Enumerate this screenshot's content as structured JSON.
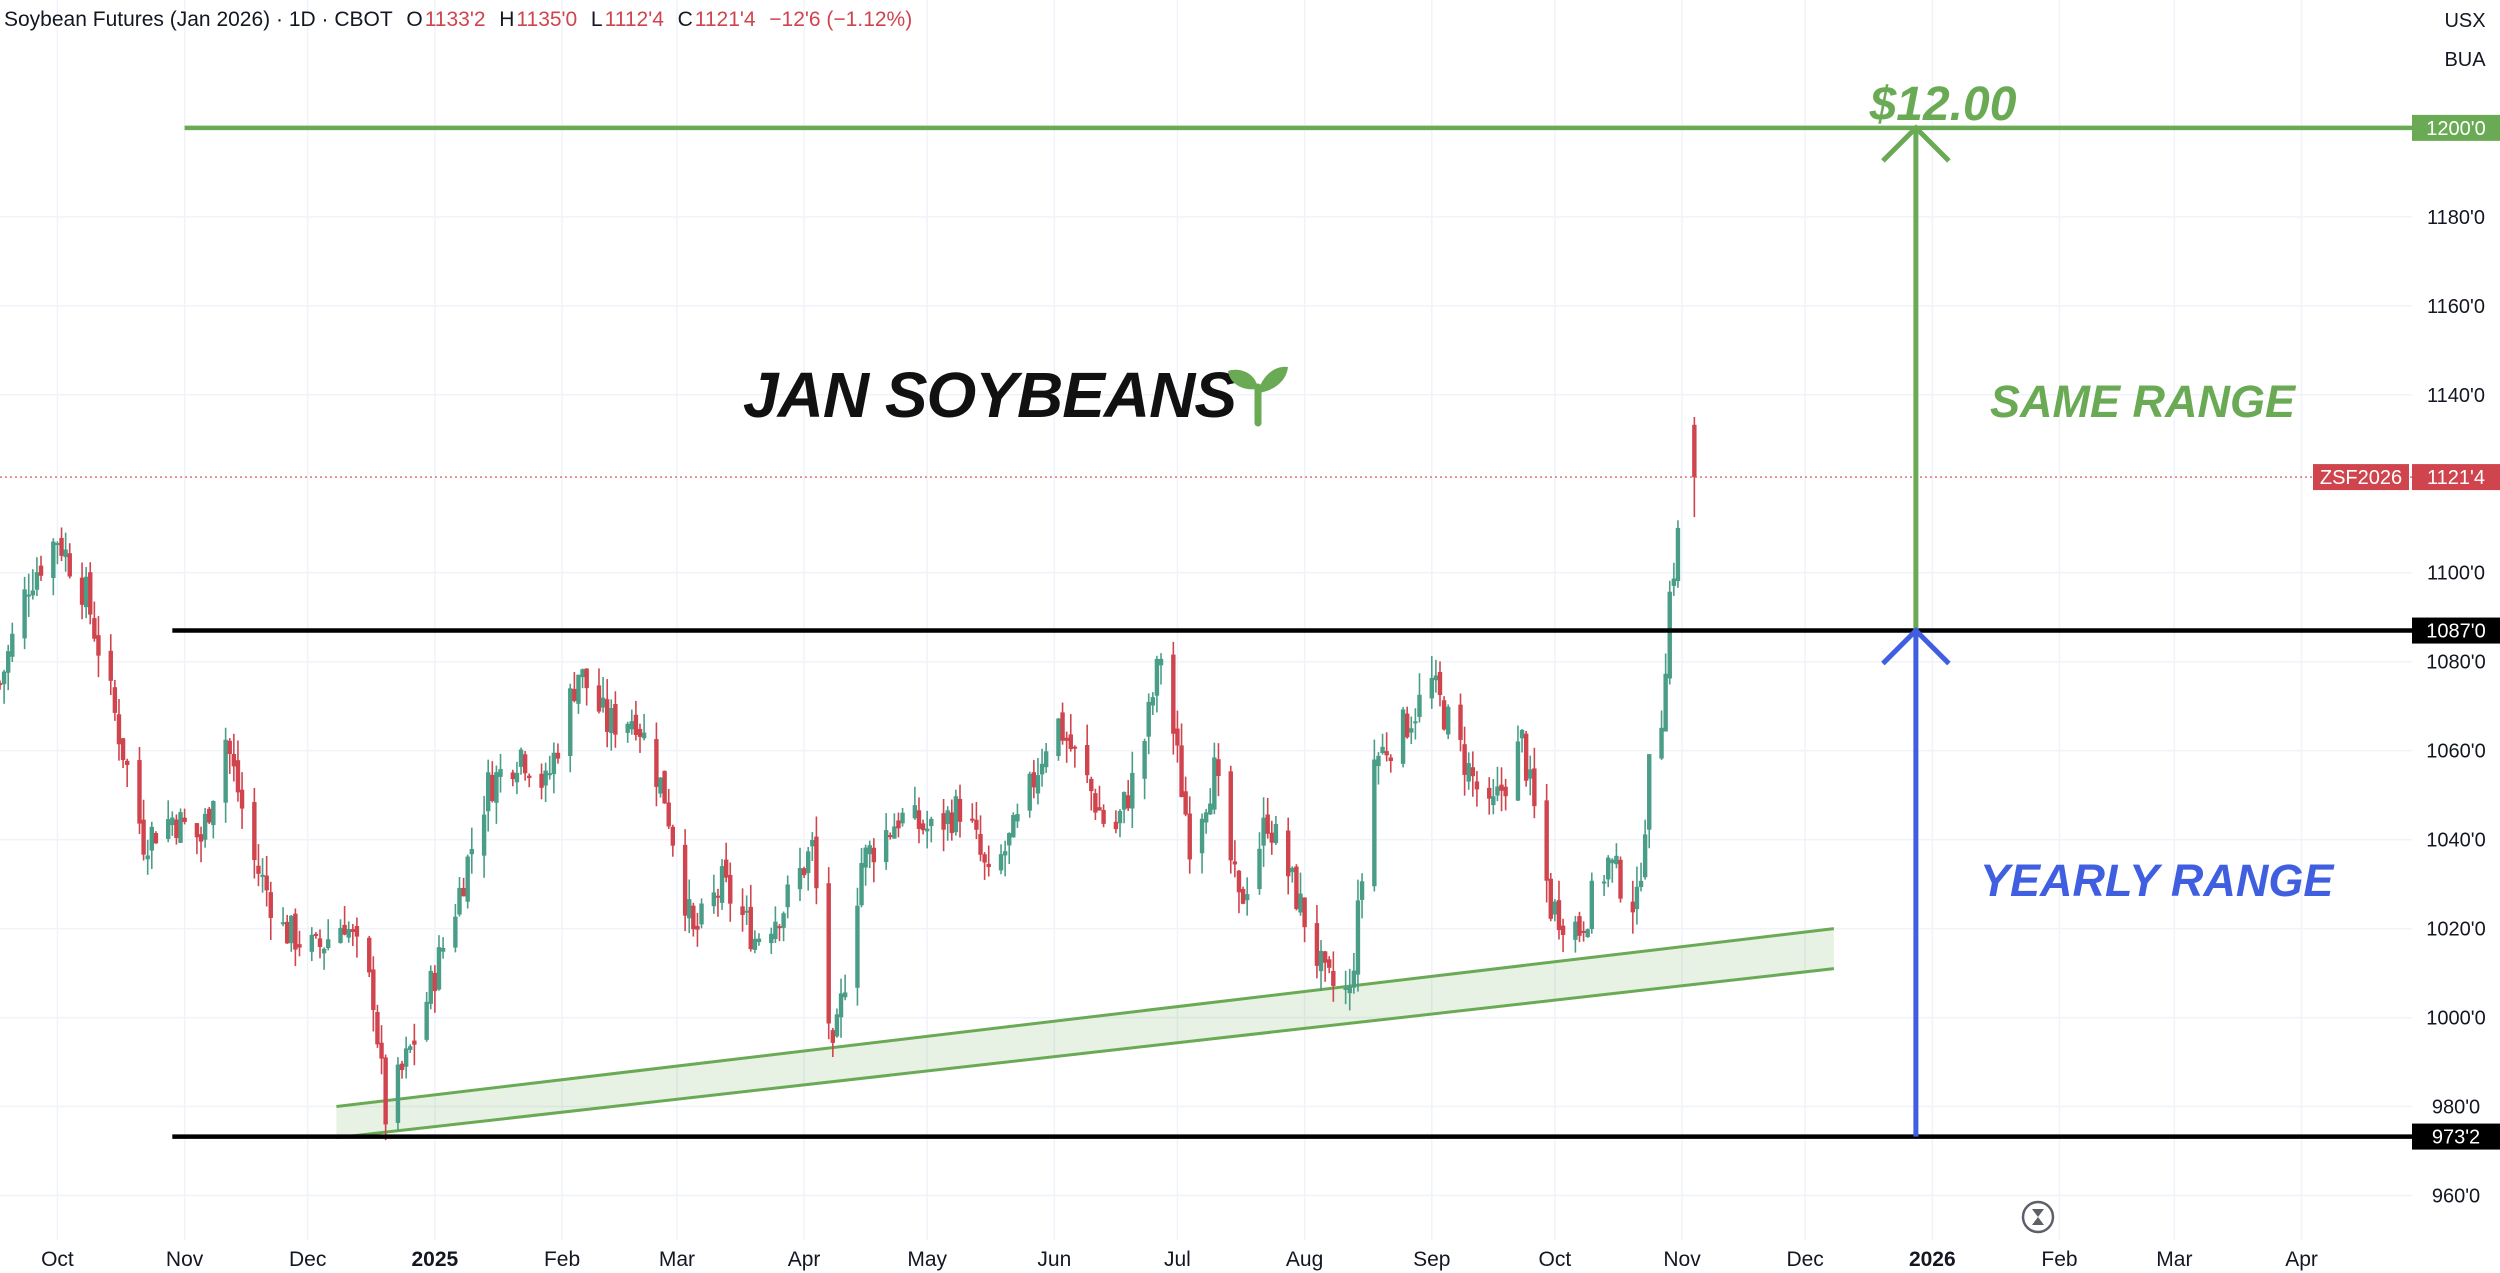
{
  "header": {
    "title": "Soybean Futures (Jan 2026) · 1D · CBOT",
    "open_label": "O",
    "open": "1133'2",
    "high_label": "H",
    "high": "1135'0",
    "low_label": "L",
    "low": "1112'4",
    "close_label": "C",
    "close": "1121'4",
    "change": "−12'6 (−1.12%)"
  },
  "currency_buttons": [
    "USX",
    "BUA"
  ],
  "colors": {
    "up": "#4a9d87",
    "down": "#d0444e",
    "green": "#6aaa55",
    "blue": "#3f5fe0",
    "black": "#000000",
    "axis_text": "#131722"
  },
  "chart_data": {
    "type": "candlestick",
    "title": "JAN SOYBEANS",
    "symbol": "ZSF2026",
    "last_price": 1121.5,
    "last_price_label": "1121'4",
    "ylim": [
      950,
      1222
    ],
    "y_ticks": [
      960,
      980,
      1000,
      1020,
      1040,
      1060,
      1080,
      1100,
      1140,
      1160,
      1180
    ],
    "y_tick_labels": [
      "960'0",
      "980'0",
      "1000'0",
      "1020'0",
      "1040'0",
      "1060'0",
      "1080'0",
      "1100'0",
      "1140'0",
      "1160'0",
      "1180'0"
    ],
    "xlim": [
      "2024-09-17",
      "2026-04-25"
    ],
    "x_ticks": [
      {
        "date": "2024-10-01",
        "label": "Oct",
        "bold": false
      },
      {
        "date": "2024-11-01",
        "label": "Nov",
        "bold": false
      },
      {
        "date": "2024-12-01",
        "label": "Dec",
        "bold": false
      },
      {
        "date": "2025-01-01",
        "label": "2025",
        "bold": true
      },
      {
        "date": "2025-02-01",
        "label": "Feb",
        "bold": false
      },
      {
        "date": "2025-03-01",
        "label": "Mar",
        "bold": false
      },
      {
        "date": "2025-04-01",
        "label": "Apr",
        "bold": false
      },
      {
        "date": "2025-05-01",
        "label": "May",
        "bold": false
      },
      {
        "date": "2025-06-01",
        "label": "Jun",
        "bold": false
      },
      {
        "date": "2025-07-01",
        "label": "Jul",
        "bold": false
      },
      {
        "date": "2025-08-01",
        "label": "Aug",
        "bold": false
      },
      {
        "date": "2025-09-01",
        "label": "Sep",
        "bold": false
      },
      {
        "date": "2025-10-01",
        "label": "Oct",
        "bold": false
      },
      {
        "date": "2025-11-01",
        "label": "Nov",
        "bold": false
      },
      {
        "date": "2025-12-01",
        "label": "Dec",
        "bold": false
      },
      {
        "date": "2026-01-01",
        "label": "2026",
        "bold": true
      },
      {
        "date": "2026-02-01",
        "label": "Feb",
        "bold": false
      },
      {
        "date": "2026-03-01",
        "label": "Mar",
        "bold": false
      },
      {
        "date": "2026-04-01",
        "label": "Apr",
        "bold": false
      }
    ],
    "price_path": [
      [
        "2024-09-17",
        1075
      ],
      [
        "2024-09-24",
        1098
      ],
      [
        "2024-10-01",
        1108
      ],
      [
        "2024-10-08",
        1095
      ],
      [
        "2024-10-15",
        1068
      ],
      [
        "2024-10-22",
        1040
      ],
      [
        "2024-10-29",
        1045
      ],
      [
        "2024-11-05",
        1040
      ],
      [
        "2024-11-11",
        1063
      ],
      [
        "2024-11-18",
        1035
      ],
      [
        "2024-11-25",
        1020
      ],
      [
        "2024-12-03",
        1015
      ],
      [
        "2024-12-10",
        1022
      ],
      [
        "2024-12-17",
        1005
      ],
      [
        "2024-12-20",
        978
      ],
      [
        "2024-12-27",
        995
      ],
      [
        "2025-01-06",
        1025
      ],
      [
        "2025-01-14",
        1052
      ],
      [
        "2025-01-22",
        1060
      ],
      [
        "2025-01-28",
        1052
      ],
      [
        "2025-02-05",
        1078
      ],
      [
        "2025-02-12",
        1066
      ],
      [
        "2025-02-19",
        1068
      ],
      [
        "2025-02-26",
        1050
      ],
      [
        "2025-03-05",
        1018
      ],
      [
        "2025-03-12",
        1030
      ],
      [
        "2025-03-20",
        1018
      ],
      [
        "2025-03-27",
        1025
      ],
      [
        "2025-04-03",
        1038
      ],
      [
        "2025-04-08",
        990
      ],
      [
        "2025-04-15",
        1035
      ],
      [
        "2025-04-24",
        1045
      ],
      [
        "2025-05-02",
        1042
      ],
      [
        "2025-05-10",
        1048
      ],
      [
        "2025-05-16",
        1030
      ],
      [
        "2025-05-24",
        1045
      ],
      [
        "2025-06-01",
        1068
      ],
      [
        "2025-06-08",
        1055
      ],
      [
        "2025-06-15",
        1040
      ],
      [
        "2025-06-22",
        1058
      ],
      [
        "2025-06-27",
        1082
      ],
      [
        "2025-07-04",
        1040
      ],
      [
        "2025-07-10",
        1055
      ],
      [
        "2025-07-16",
        1025
      ],
      [
        "2025-07-23",
        1045
      ],
      [
        "2025-07-31",
        1025
      ],
      [
        "2025-08-06",
        1008
      ],
      [
        "2025-08-12",
        1005
      ],
      [
        "2025-08-18",
        1058
      ],
      [
        "2025-08-25",
        1065
      ],
      [
        "2025-09-01",
        1075
      ],
      [
        "2025-09-08",
        1060
      ],
      [
        "2025-09-15",
        1045
      ],
      [
        "2025-09-23",
        1062
      ],
      [
        "2025-09-30",
        1025
      ],
      [
        "2025-10-07",
        1020
      ],
      [
        "2025-10-14",
        1035
      ],
      [
        "2025-10-21",
        1025
      ],
      [
        "2025-10-24",
        1055
      ],
      [
        "2025-10-27",
        1068
      ],
      [
        "2025-10-29",
        1095
      ],
      [
        "2025-10-31",
        1108
      ],
      [
        "2025-11-02",
        1132
      ],
      [
        "2025-11-03",
        1121.5
      ]
    ],
    "horizontal_lines": [
      {
        "price": 1200,
        "label": "1200'0",
        "color": "#6aaa55",
        "from": "2024-11-01"
      },
      {
        "price": 1087,
        "label": "1087'0",
        "color": "#000000",
        "from": "2024-10-29"
      },
      {
        "price": 973.25,
        "label": "973'2",
        "color": "#000000",
        "from": "2024-10-29"
      }
    ],
    "trend_channel": {
      "upper": [
        [
          "2024-12-08",
          980
        ],
        [
          "2025-12-08",
          1020
        ]
      ],
      "lower": [
        [
          "2024-12-08",
          973
        ],
        [
          "2025-12-08",
          1011
        ]
      ]
    },
    "annotations": [
      {
        "text": "$12.00",
        "color": "#6aaa55"
      },
      {
        "text": "SAME RANGE",
        "color": "#6aaa55"
      },
      {
        "text": "YEARLY RANGE",
        "color": "#3f5fe0"
      }
    ],
    "arrows": [
      {
        "name": "same-range-arrow",
        "date": "2025-12-28",
        "from": 1087,
        "to": 1200,
        "color": "#6aaa55"
      },
      {
        "name": "yearly-range-arrow",
        "date": "2025-12-28",
        "from": 973.25,
        "to": 1087,
        "color": "#3f5fe0"
      }
    ],
    "grid": true
  }
}
